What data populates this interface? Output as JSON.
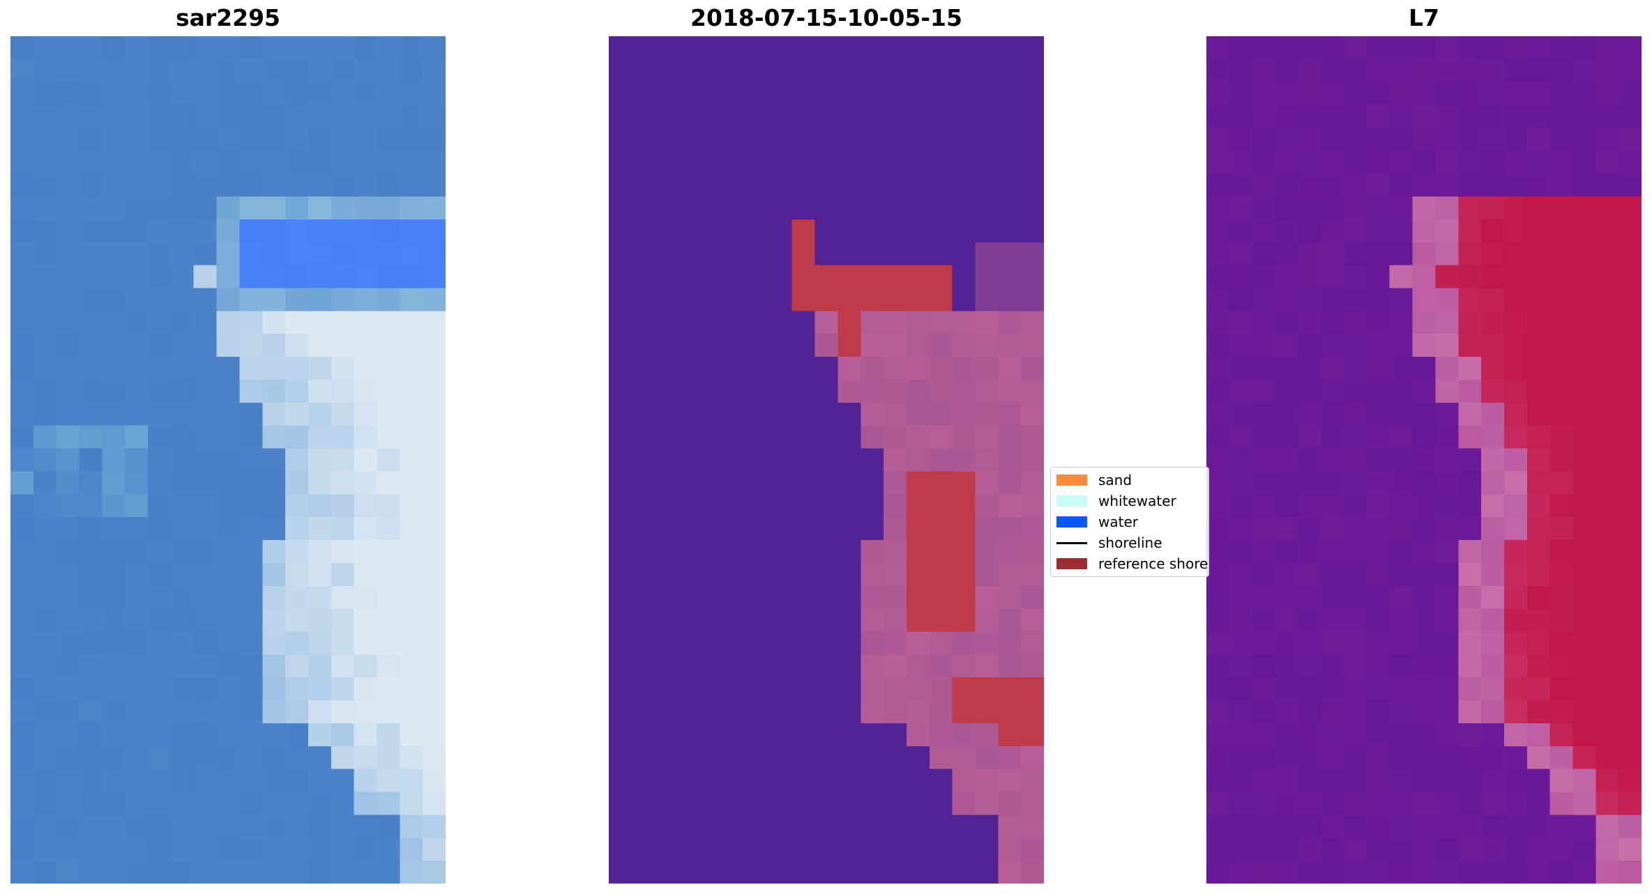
{
  "panels": [
    {
      "title": "sar2295"
    },
    {
      "title": "2018-07-15-10-05-15"
    },
    {
      "title": "L7"
    }
  ],
  "legend": {
    "items": [
      {
        "label": "sand",
        "color": "#ff8c3a",
        "kind": "patch"
      },
      {
        "label": "whitewater",
        "color": "#c8fbf7",
        "kind": "patch"
      },
      {
        "label": "water",
        "color": "#0a5af8",
        "kind": "patch"
      },
      {
        "label": "shoreline",
        "color": "#000000",
        "kind": "line"
      },
      {
        "label": "reference shore",
        "color": "#9b2f33",
        "kind": "patch"
      }
    ]
  },
  "colors": {
    "rgb_water": "#4a7fc8",
    "rgb_surf": "#dce8f2",
    "class_background": "#532295",
    "class_land": "#b85e99",
    "class_reference": "#bf3a4a",
    "mndwi_low": "#6e1d98",
    "mndwi_high": "#c2174a"
  }
}
